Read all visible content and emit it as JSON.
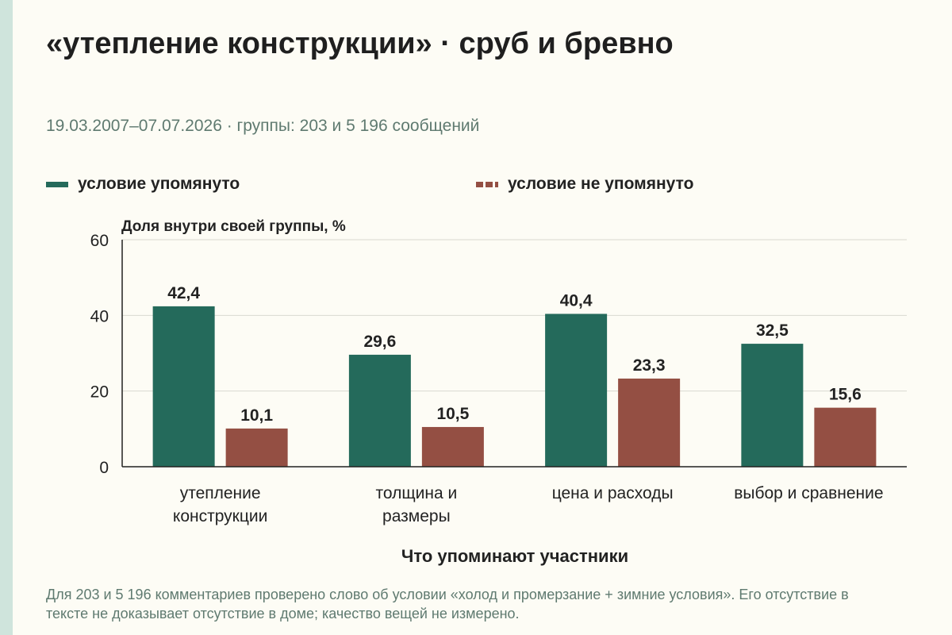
{
  "header": {
    "title": "«утепление конструкции» · сруб и бревно",
    "subtitle": "19.03.2007–07.07.2026 · группы: 203 и 5 196 сообщений"
  },
  "legend": {
    "mentioned": "условие упомянуто",
    "not_mentioned": "условие не упомянуто"
  },
  "footnote": "Для 203 и 5 196 комментариев проверено слово об условии «холод и промерзание + зимние условия». Его отсутствие в тексте не доказывает отсутствие в доме; качество вещей не измерено.",
  "colors": {
    "mentioned": "#246a5b",
    "not_mentioned": "#944f43",
    "grid": "#d9d9d0",
    "axis": "#222222"
  },
  "chart_data": {
    "type": "bar",
    "title": "«утепление конструкции» · сруб и бревно",
    "ylabel": "Доля внутри своей группы, %",
    "xlabel": "Что упоминают участники",
    "ylim": [
      0,
      60
    ],
    "yticks": [
      0,
      20,
      40,
      60
    ],
    "grid": true,
    "legend_position": "top",
    "categories": [
      [
        "утепление",
        "конструкции"
      ],
      [
        "толщина и",
        "размеры"
      ],
      [
        "цена и расходы"
      ],
      [
        "выбор и сравнение"
      ]
    ],
    "series": [
      {
        "name": "условие упомянуто",
        "values": [
          42.4,
          29.6,
          40.4,
          32.5
        ],
        "labels": [
          "42,4",
          "29,6",
          "40,4",
          "32,5"
        ]
      },
      {
        "name": "условие не упомянуто",
        "values": [
          10.1,
          10.5,
          23.3,
          15.6
        ],
        "labels": [
          "10,1",
          "10,5",
          "23,3",
          "15,6"
        ]
      }
    ]
  }
}
